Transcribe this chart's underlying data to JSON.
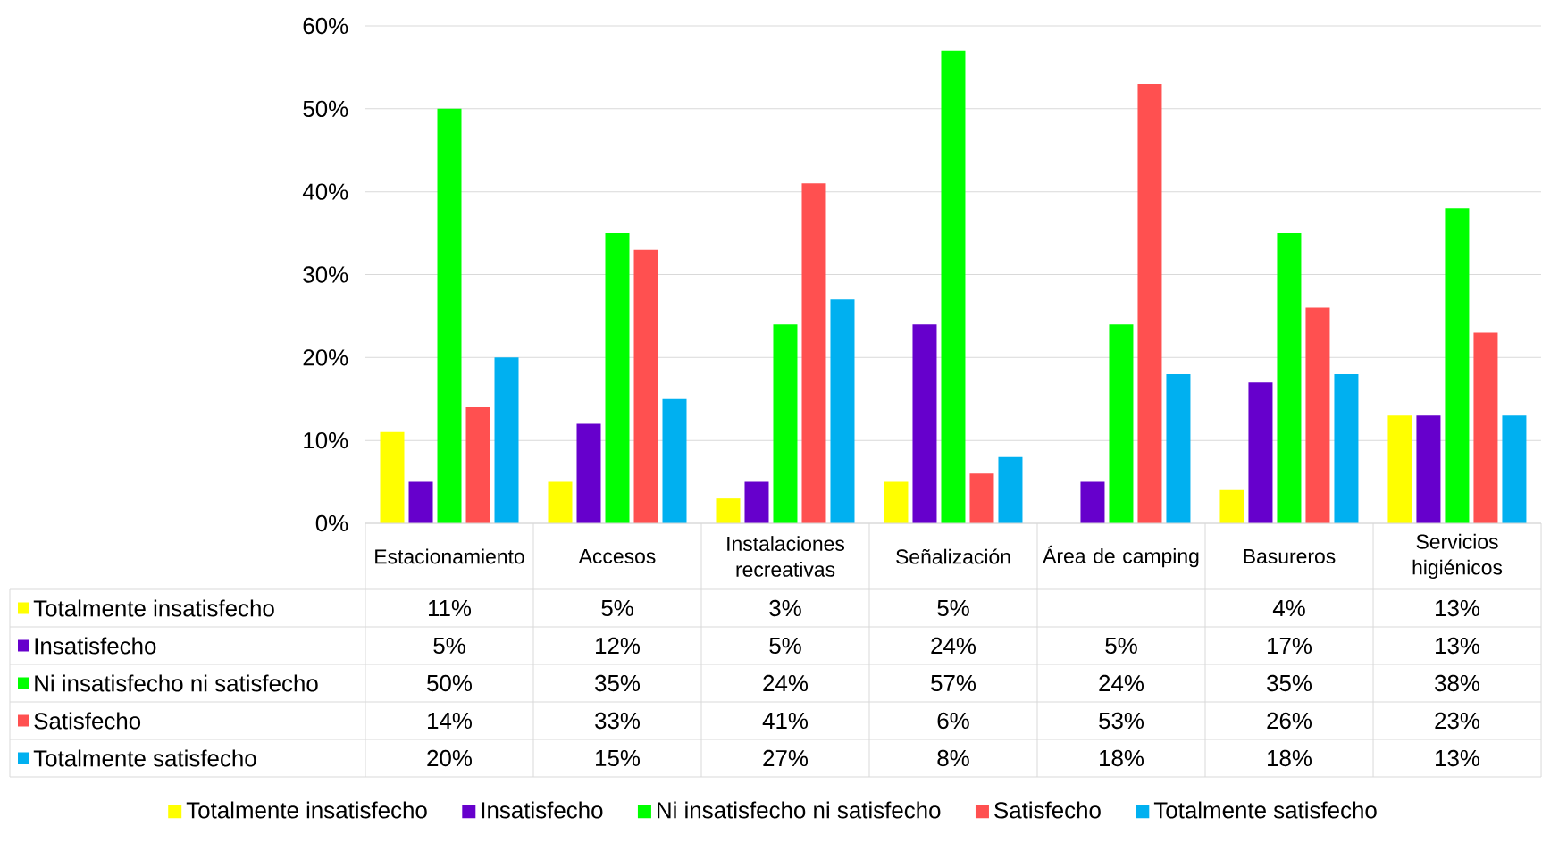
{
  "chart_data": {
    "type": "bar",
    "categories": [
      "Estacionamiento",
      "Accesos",
      "Instalaciones recreativas",
      "Señalización",
      "Área de camping",
      "Basureros",
      "Servicios higiénicos"
    ],
    "series": [
      {
        "name": "Totalmente insatisfecho",
        "color": "#ffff00",
        "values": [
          11,
          5,
          3,
          5,
          null,
          4,
          13
        ],
        "value_labels": [
          "11%",
          "5%",
          "3%",
          "5%",
          null,
          "4%",
          "13%"
        ]
      },
      {
        "name": "Insatisfecho",
        "color": "#6600cc",
        "values": [
          5,
          12,
          5,
          24,
          5,
          17,
          13
        ],
        "value_labels": [
          "5%",
          "12%",
          "5%",
          "24%",
          "5%",
          "17%",
          "13%"
        ]
      },
      {
        "name": "Ni insatisfecho ni satisfecho",
        "color": "#00ff00",
        "values": [
          50,
          35,
          24,
          57,
          24,
          35,
          38
        ],
        "value_labels": [
          "50%",
          "35%",
          "24%",
          "57%",
          "24%",
          "35%",
          "38%"
        ]
      },
      {
        "name": "Satisfecho",
        "color": "#ff5050",
        "values": [
          14,
          33,
          41,
          6,
          53,
          26,
          23
        ],
        "value_labels": [
          "14%",
          "33%",
          "41%",
          "6%",
          "53%",
          "26%",
          "23%"
        ]
      },
      {
        "name": "Totalmente satisfecho",
        "color": "#00b0f0",
        "values": [
          20,
          15,
          27,
          8,
          18,
          18,
          13
        ],
        "value_labels": [
          "20%",
          "15%",
          "27%",
          "8%",
          "18%",
          "18%",
          "13%"
        ]
      }
    ],
    "ylim": [
      0,
      60
    ],
    "yticks": [
      {
        "value": 0,
        "label": "0%"
      },
      {
        "value": 10,
        "label": "10%"
      },
      {
        "value": 20,
        "label": "20%"
      },
      {
        "value": 30,
        "label": "30%"
      },
      {
        "value": 40,
        "label": "40%"
      },
      {
        "value": 50,
        "label": "50%"
      },
      {
        "value": 60,
        "label": "60%"
      }
    ],
    "grid": "y",
    "legend": "bottom"
  }
}
